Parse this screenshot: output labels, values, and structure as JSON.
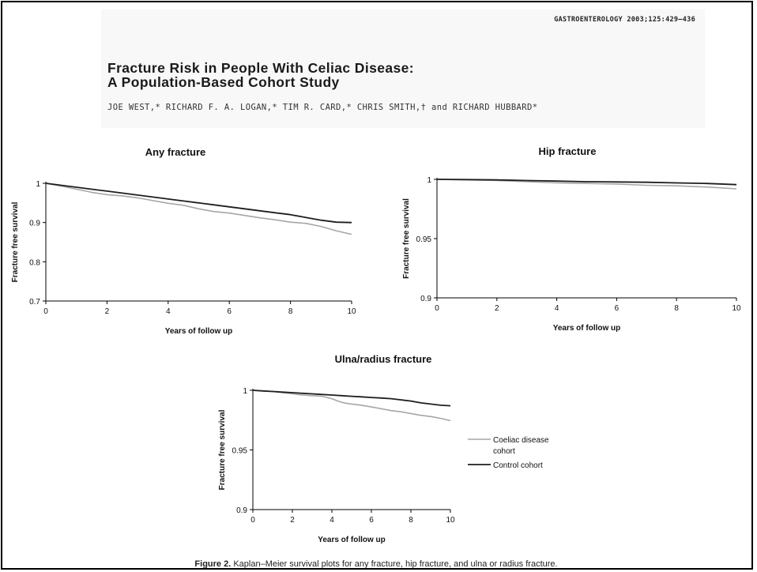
{
  "journal_ref": "GASTROENTEROLOGY 2003;125:429–436",
  "title_lines": [
    "Fracture Risk in People With Celiac Disease:",
    "A Population-Based Cohort Study"
  ],
  "authors": "JOE WEST,* RICHARD F. A. LOGAN,* TIM R. CARD,* CHRIS SMITH,† and RICHARD HUBBARD*",
  "colors": {
    "coeliac": "#a6a6a6",
    "control": "#1e1e1e",
    "axis": "#000000"
  },
  "legend": {
    "items": [
      {
        "key": "coeliac",
        "lines": [
          "Coeliac disease",
          "cohort"
        ]
      },
      {
        "key": "control",
        "lines": [
          "Control cohort"
        ]
      }
    ]
  },
  "chart_data": [
    {
      "type": "line",
      "title": "Any fracture",
      "xlabel": "Years of follow up",
      "ylabel": "Fracture free survival",
      "xlim": [
        0,
        10
      ],
      "ylim": [
        0.7,
        1
      ],
      "xticks": [
        "0",
        "2",
        "4",
        "6",
        "8",
        "10"
      ],
      "yticks": [
        "0.7",
        "0.8",
        "0.9",
        "1"
      ],
      "series": [
        {
          "key": "coeliac",
          "x": [
            0,
            0.5,
            1,
            1.5,
            2,
            2.5,
            3,
            3.5,
            4,
            4.5,
            5,
            5.5,
            6,
            6.5,
            7,
            7.5,
            8,
            8.5,
            9,
            9.5,
            10
          ],
          "y": [
            1.0,
            0.993,
            0.985,
            0.977,
            0.971,
            0.968,
            0.963,
            0.956,
            0.949,
            0.944,
            0.935,
            0.928,
            0.924,
            0.918,
            0.912,
            0.907,
            0.901,
            0.898,
            0.89,
            0.879,
            0.87
          ]
        },
        {
          "key": "control",
          "x": [
            0,
            0.5,
            1,
            1.5,
            2,
            2.5,
            3,
            3.5,
            4,
            4.5,
            5,
            5.5,
            6,
            6.5,
            7,
            7.5,
            8,
            8.5,
            9,
            9.5,
            10
          ],
          "y": [
            1.0,
            0.995,
            0.99,
            0.985,
            0.98,
            0.975,
            0.97,
            0.965,
            0.96,
            0.955,
            0.95,
            0.945,
            0.94,
            0.935,
            0.93,
            0.925,
            0.92,
            0.913,
            0.906,
            0.901,
            0.9
          ]
        }
      ]
    },
    {
      "type": "line",
      "title": "Hip fracture",
      "xlabel": "Years of follow up",
      "ylabel": "Fracture free survival",
      "xlim": [
        0,
        10
      ],
      "ylim": [
        0.9,
        1
      ],
      "xticks": [
        "0",
        "2",
        "4",
        "6",
        "8",
        "10"
      ],
      "yticks": [
        "0.9",
        "0.95",
        "1"
      ],
      "series": [
        {
          "key": "coeliac",
          "x": [
            0,
            1,
            2,
            3,
            4,
            5,
            6,
            7,
            8,
            9,
            10
          ],
          "y": [
            1.0,
            0.9995,
            0.999,
            0.998,
            0.997,
            0.9965,
            0.996,
            0.995,
            0.9945,
            0.9935,
            0.992
          ]
        },
        {
          "key": "control",
          "x": [
            0,
            1,
            2,
            3,
            4,
            5,
            6,
            7,
            8,
            9,
            10
          ],
          "y": [
            1.0,
            0.9998,
            0.9995,
            0.999,
            0.9985,
            0.998,
            0.9978,
            0.9975,
            0.997,
            0.9965,
            0.9955
          ]
        }
      ]
    },
    {
      "type": "line",
      "title": "Ulna/radius fracture",
      "xlabel": "Years of follow up",
      "ylabel": "Fracture free survival",
      "xlim": [
        0,
        10
      ],
      "ylim": [
        0.9,
        1
      ],
      "xticks": [
        "0",
        "2",
        "4",
        "6",
        "8",
        "10"
      ],
      "yticks": [
        "0.9",
        "0.95",
        "1"
      ],
      "series": [
        {
          "key": "coeliac",
          "x": [
            0,
            0.5,
            1,
            1.5,
            2,
            2.5,
            3,
            3.5,
            4,
            4.3,
            4.6,
            5,
            5.5,
            6,
            6.5,
            7,
            7.5,
            8,
            8.5,
            9,
            9.5,
            10
          ],
          "y": [
            1.0,
            0.9995,
            0.999,
            0.998,
            0.997,
            0.996,
            0.9955,
            0.995,
            0.993,
            0.991,
            0.9895,
            0.9885,
            0.9875,
            0.986,
            0.9845,
            0.983,
            0.982,
            0.9805,
            0.979,
            0.978,
            0.9765,
            0.9745
          ]
        },
        {
          "key": "control",
          "x": [
            0,
            0.5,
            1,
            1.5,
            2,
            2.5,
            3,
            3.5,
            4,
            4.5,
            5,
            5.5,
            6,
            6.5,
            7,
            7.5,
            8,
            8.5,
            9,
            9.5,
            10
          ],
          "y": [
            1.0,
            0.9995,
            0.999,
            0.9985,
            0.998,
            0.9975,
            0.997,
            0.9965,
            0.996,
            0.9955,
            0.995,
            0.9945,
            0.994,
            0.9935,
            0.993,
            0.992,
            0.991,
            0.9895,
            0.9885,
            0.9875,
            0.987
          ]
        }
      ]
    }
  ],
  "caption": {
    "label": "Figure 2.",
    "text": " Kaplan–Meier survival plots for any fracture, hip fracture, and ulna or radius fracture."
  }
}
